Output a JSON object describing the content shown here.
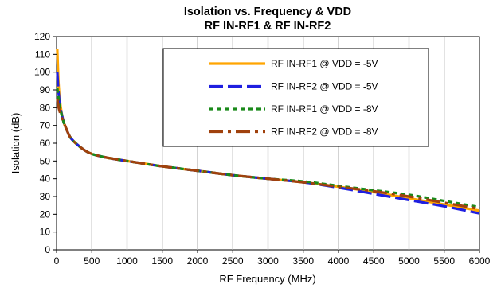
{
  "chart_data": {
    "type": "line",
    "title": "Isolation vs. Frequency & VDD",
    "subtitle": "RF IN-RF1 & RF IN-RF2",
    "xlabel": "RF Frequency (MHz)",
    "ylabel": "Isolation (dB)",
    "xlim": [
      0,
      6000
    ],
    "ylim": [
      0,
      120
    ],
    "x_ticks": [
      "0",
      "500",
      "1000",
      "1500",
      "2000",
      "2500",
      "3000",
      "3500",
      "4000",
      "4500",
      "5000",
      "5500",
      "6000"
    ],
    "y_ticks": [
      "0",
      "10",
      "20",
      "30",
      "40",
      "50",
      "60",
      "70",
      "80",
      "90",
      "100",
      "110",
      "120"
    ],
    "grid": "vertical",
    "legend_placement": "top-right",
    "x": [
      10,
      30,
      60,
      100,
      150,
      200,
      300,
      400,
      500,
      700,
      1000,
      1500,
      2000,
      2500,
      3000,
      3500,
      4000,
      4500,
      5000,
      5500,
      6000
    ],
    "series": [
      {
        "name": "RF IN-RF1 @ VDD = -5V",
        "color": "#FFA500",
        "dash": "solid",
        "values": [
          113,
          92,
          80,
          72,
          67,
          63,
          59,
          56,
          54,
          52,
          50,
          47,
          44.5,
          42,
          40,
          38,
          35.5,
          32.5,
          29,
          25.5,
          22
        ]
      },
      {
        "name": "RF IN-RF2 @ VDD = -5V",
        "color": "#1F1FE0",
        "dash": "long-dash",
        "values": [
          100,
          88,
          79,
          72,
          67,
          63,
          59,
          56,
          54,
          52,
          50,
          47,
          44.5,
          42,
          40,
          38,
          35,
          31.5,
          28,
          24.5,
          20.5
        ]
      },
      {
        "name": "RF IN-RF1 @ VDD = -8V",
        "color": "#1A8A1A",
        "dash": "short-dash",
        "values": [
          91,
          85,
          78,
          72,
          67,
          63,
          59,
          56,
          54,
          52,
          50,
          47,
          44.5,
          42,
          40,
          38.5,
          36,
          33.5,
          31,
          27.5,
          24
        ]
      },
      {
        "name": "RF IN-RF2 @ VDD = -8V",
        "color": "#A0410D",
        "dash": "long-dash-dot",
        "values": [
          85,
          80,
          76,
          72,
          67,
          63,
          59,
          56,
          54,
          52,
          50,
          47,
          44.5,
          42,
          40,
          38,
          35.5,
          33,
          30,
          26.5,
          23
        ]
      }
    ]
  }
}
